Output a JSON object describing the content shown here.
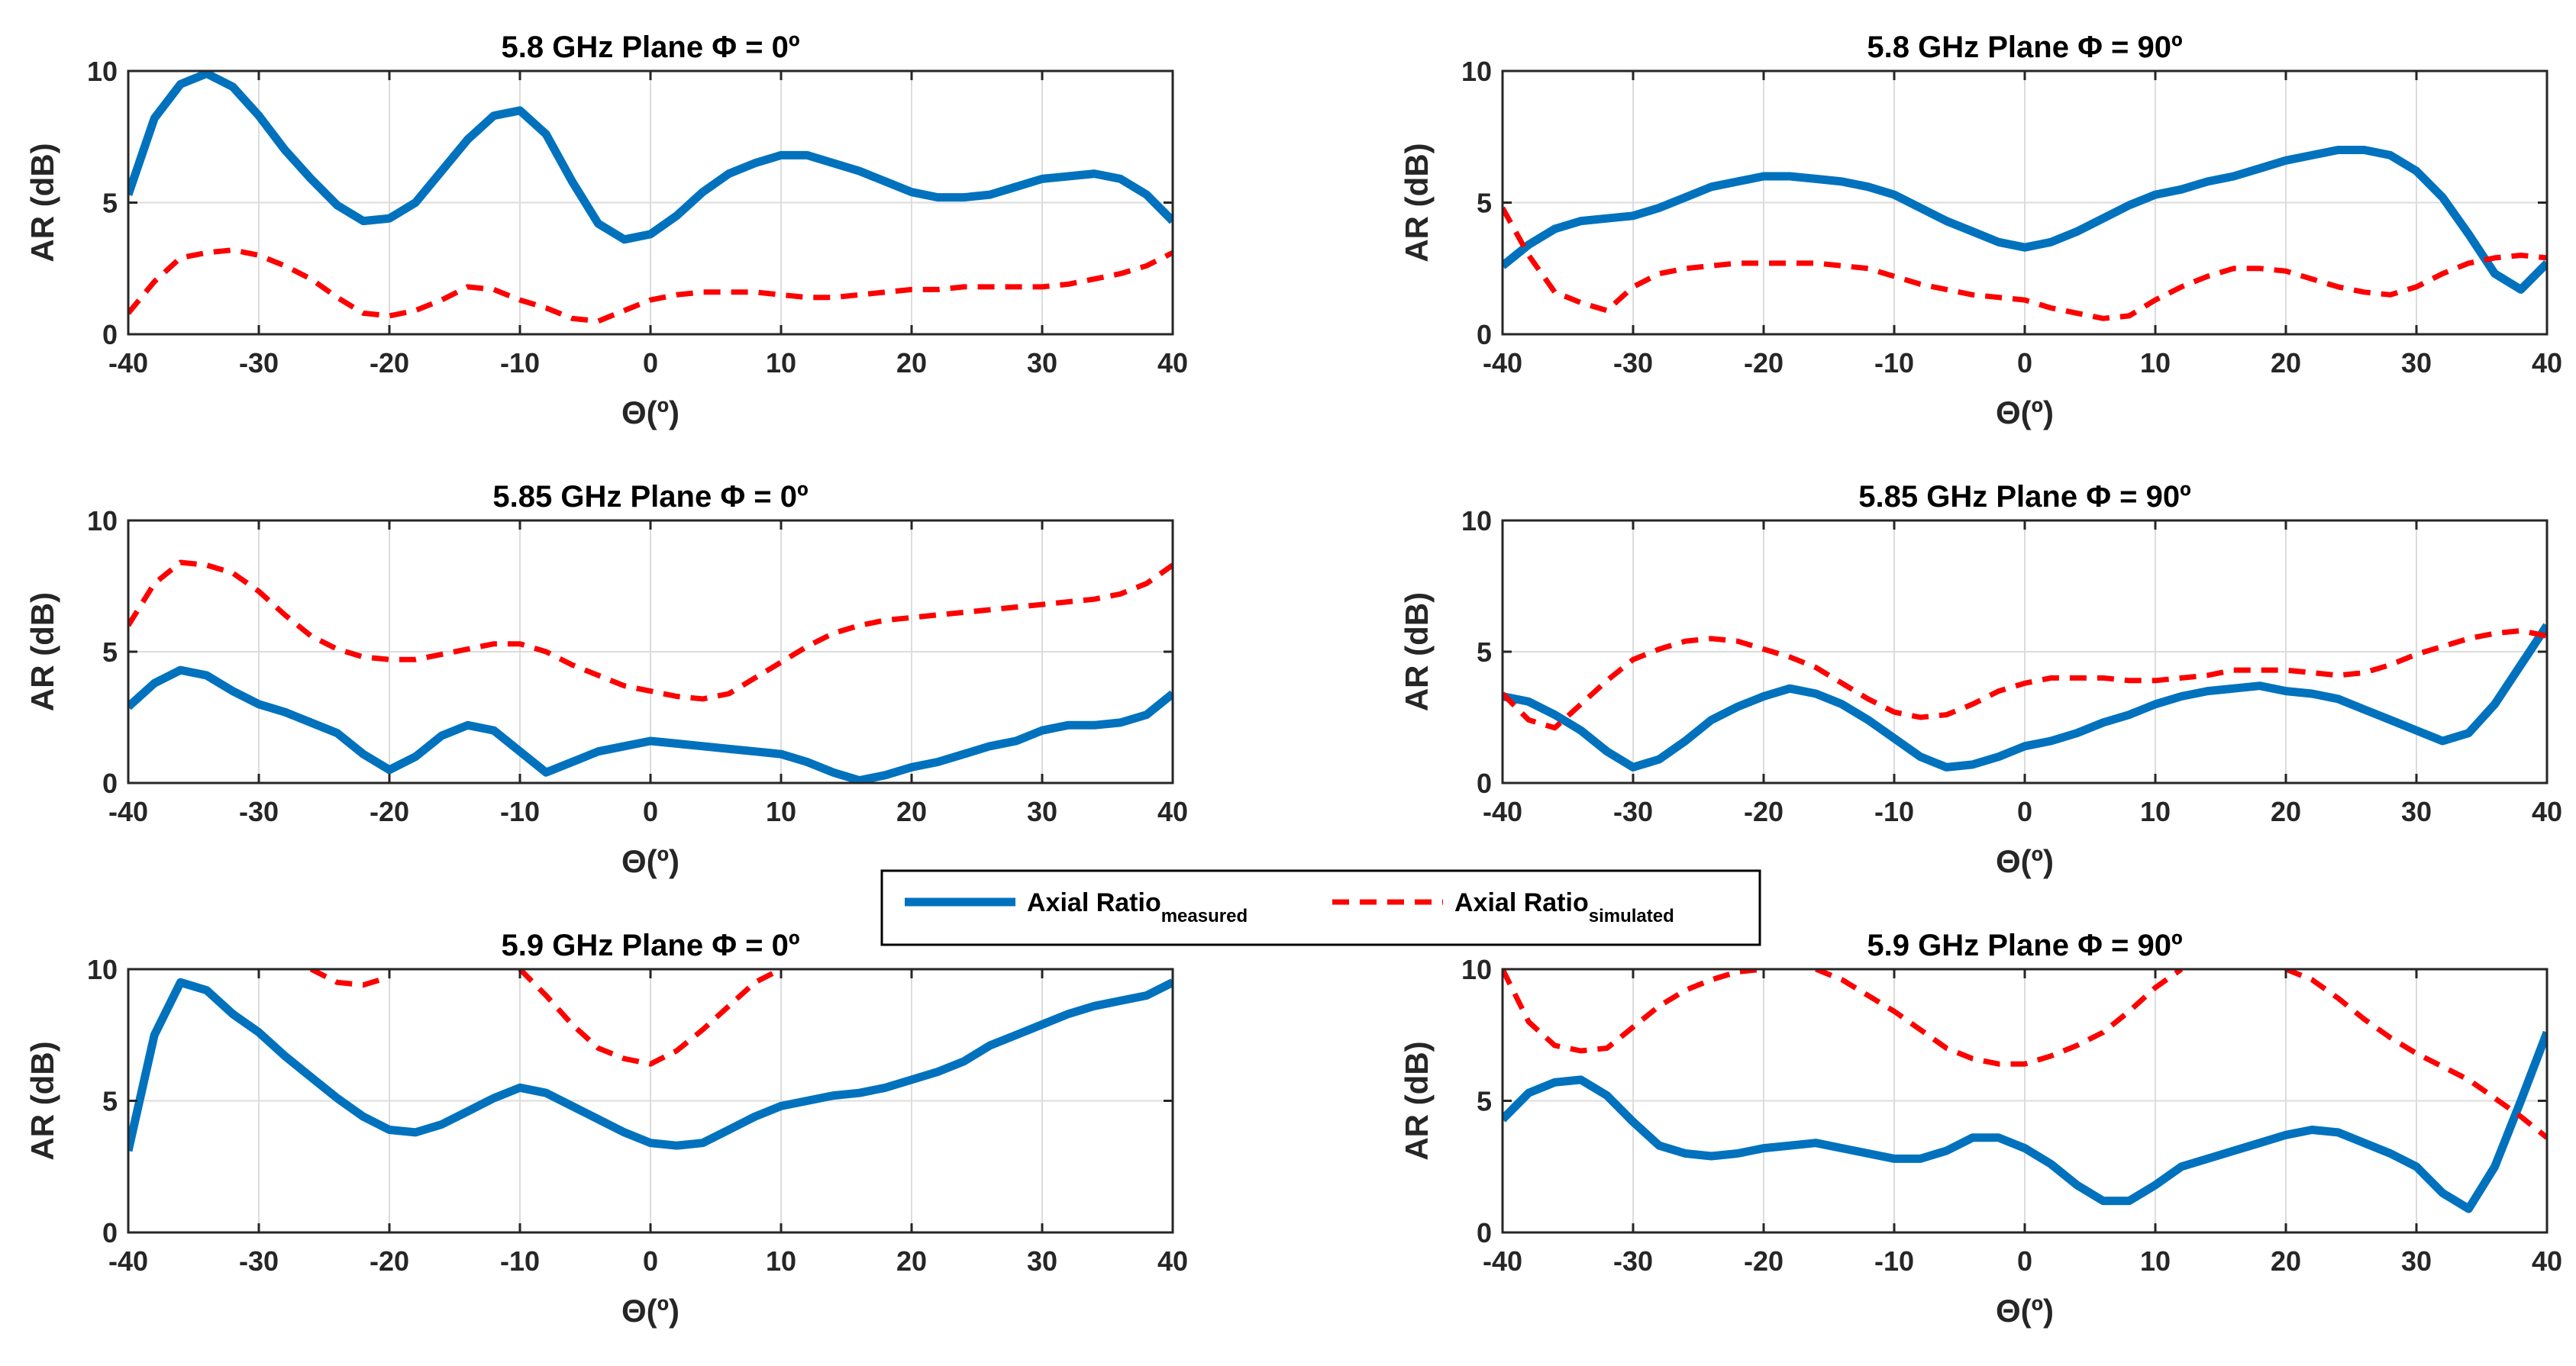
{
  "legend": {
    "measured_label": "Axial Ratio",
    "measured_sub": "measured",
    "simulated_label": "Axial Ratio",
    "simulated_sub": "simulated",
    "measured_color": "#0072BD",
    "simulated_color": "#FF0000"
  },
  "chart_data": [
    {
      "type": "line",
      "title": "5.8 GHz Plane Φ = 0º",
      "xlabel": "Θ(º)",
      "ylabel": "AR (dB)",
      "xlim": [
        -40,
        40
      ],
      "ylim": [
        0,
        10
      ],
      "xticks": [
        -40,
        -30,
        -20,
        -10,
        0,
        10,
        20,
        30,
        40
      ],
      "yticks": [
        0,
        5,
        10
      ],
      "grid": true,
      "x": [
        -40,
        -38,
        -36,
        -34,
        -32,
        -30,
        -28,
        -26,
        -24,
        -22,
        -20,
        -18,
        -16,
        -14,
        -12,
        -10,
        -8,
        -6,
        -4,
        -2,
        0,
        2,
        4,
        6,
        8,
        10,
        12,
        14,
        16,
        18,
        20,
        22,
        24,
        26,
        28,
        30,
        32,
        34,
        36,
        38,
        40
      ],
      "series": [
        {
          "name": "Axial Ratio measured",
          "values": [
            5.3,
            8.2,
            9.5,
            9.9,
            9.4,
            8.3,
            7.0,
            5.9,
            4.9,
            4.3,
            4.4,
            5.0,
            6.2,
            7.4,
            8.3,
            8.5,
            7.6,
            5.8,
            4.2,
            3.6,
            3.8,
            4.5,
            5.4,
            6.1,
            6.5,
            6.8,
            6.8,
            6.5,
            6.2,
            5.8,
            5.4,
            5.2,
            5.2,
            5.3,
            5.6,
            5.9,
            6.0,
            6.1,
            5.9,
            5.3,
            4.3
          ]
        },
        {
          "name": "Axial Ratio simulated",
          "values": [
            0.8,
            2.0,
            2.9,
            3.1,
            3.2,
            3.0,
            2.6,
            2.1,
            1.4,
            0.8,
            0.7,
            0.9,
            1.3,
            1.8,
            1.7,
            1.3,
            1.0,
            0.6,
            0.5,
            0.9,
            1.3,
            1.5,
            1.6,
            1.6,
            1.6,
            1.5,
            1.4,
            1.4,
            1.5,
            1.6,
            1.7,
            1.7,
            1.8,
            1.8,
            1.8,
            1.8,
            1.9,
            2.1,
            2.3,
            2.6,
            3.1
          ]
        }
      ]
    },
    {
      "type": "line",
      "title": "5.8 GHz Plane Φ = 90º",
      "xlabel": "Θ(º)",
      "ylabel": "AR (dB)",
      "xlim": [
        -40,
        40
      ],
      "ylim": [
        0,
        10
      ],
      "xticks": [
        -40,
        -30,
        -20,
        -10,
        0,
        10,
        20,
        30,
        40
      ],
      "yticks": [
        0,
        5,
        10
      ],
      "grid": true,
      "x": [
        -40,
        -38,
        -36,
        -34,
        -32,
        -30,
        -28,
        -26,
        -24,
        -22,
        -20,
        -18,
        -16,
        -14,
        -12,
        -10,
        -8,
        -6,
        -4,
        -2,
        0,
        2,
        4,
        6,
        8,
        10,
        12,
        14,
        16,
        18,
        20,
        22,
        24,
        26,
        28,
        30,
        32,
        34,
        36,
        38,
        40
      ],
      "series": [
        {
          "name": "Axial Ratio measured",
          "values": [
            2.6,
            3.4,
            4.0,
            4.3,
            4.4,
            4.5,
            4.8,
            5.2,
            5.6,
            5.8,
            6.0,
            6.0,
            5.9,
            5.8,
            5.6,
            5.3,
            4.8,
            4.3,
            3.9,
            3.5,
            3.3,
            3.5,
            3.9,
            4.4,
            4.9,
            5.3,
            5.5,
            5.8,
            6.0,
            6.3,
            6.6,
            6.8,
            7.0,
            7.0,
            6.8,
            6.2,
            5.2,
            3.8,
            2.3,
            1.7,
            2.7
          ]
        },
        {
          "name": "Axial Ratio simulated",
          "values": [
            4.8,
            3.0,
            1.6,
            1.2,
            0.9,
            1.8,
            2.3,
            2.5,
            2.6,
            2.7,
            2.7,
            2.7,
            2.7,
            2.6,
            2.5,
            2.2,
            1.9,
            1.7,
            1.5,
            1.4,
            1.3,
            1.0,
            0.8,
            0.6,
            0.7,
            1.3,
            1.8,
            2.2,
            2.5,
            2.5,
            2.4,
            2.1,
            1.8,
            1.6,
            1.5,
            1.8,
            2.3,
            2.7,
            2.9,
            3.0,
            2.9
          ]
        }
      ]
    },
    {
      "type": "line",
      "title": "5.85 GHz Plane Φ = 0º",
      "xlabel": "Θ(º)",
      "ylabel": "AR (dB)",
      "xlim": [
        -40,
        40
      ],
      "ylim": [
        0,
        10
      ],
      "xticks": [
        -40,
        -30,
        -20,
        -10,
        0,
        10,
        20,
        30,
        40
      ],
      "yticks": [
        0,
        5,
        10
      ],
      "grid": true,
      "x": [
        -40,
        -38,
        -36,
        -34,
        -32,
        -30,
        -28,
        -26,
        -24,
        -22,
        -20,
        -18,
        -16,
        -14,
        -12,
        -10,
        -8,
        -6,
        -4,
        -2,
        0,
        2,
        4,
        6,
        8,
        10,
        12,
        14,
        16,
        18,
        20,
        22,
        24,
        26,
        28,
        30,
        32,
        34,
        36,
        38,
        40
      ],
      "series": [
        {
          "name": "Axial Ratio measured",
          "values": [
            2.9,
            3.8,
            4.3,
            4.1,
            3.5,
            3.0,
            2.7,
            2.3,
            1.9,
            1.1,
            0.5,
            1.0,
            1.8,
            2.2,
            2.0,
            1.2,
            0.4,
            0.8,
            1.2,
            1.4,
            1.6,
            1.5,
            1.4,
            1.3,
            1.2,
            1.1,
            0.8,
            0.4,
            0.1,
            0.3,
            0.6,
            0.8,
            1.1,
            1.4,
            1.6,
            2.0,
            2.2,
            2.2,
            2.3,
            2.6,
            3.4
          ]
        },
        {
          "name": "Axial Ratio simulated",
          "values": [
            6.0,
            7.6,
            8.4,
            8.3,
            8.0,
            7.3,
            6.4,
            5.6,
            5.1,
            4.8,
            4.7,
            4.7,
            4.9,
            5.1,
            5.3,
            5.3,
            5.0,
            4.5,
            4.1,
            3.7,
            3.5,
            3.3,
            3.2,
            3.4,
            4.0,
            4.6,
            5.2,
            5.7,
            6.0,
            6.2,
            6.3,
            6.4,
            6.5,
            6.6,
            6.7,
            6.8,
            6.9,
            7.0,
            7.2,
            7.6,
            8.3
          ]
        }
      ]
    },
    {
      "type": "line",
      "title": "5.85 GHz Plane Φ = 90º",
      "xlabel": "Θ(º)",
      "ylabel": "AR (dB)",
      "xlim": [
        -40,
        40
      ],
      "ylim": [
        0,
        10
      ],
      "xticks": [
        -40,
        -30,
        -20,
        -10,
        0,
        10,
        20,
        30,
        40
      ],
      "yticks": [
        0,
        5,
        10
      ],
      "grid": true,
      "x": [
        -40,
        -38,
        -36,
        -34,
        -32,
        -30,
        -28,
        -26,
        -24,
        -22,
        -20,
        -18,
        -16,
        -14,
        -12,
        -10,
        -8,
        -6,
        -4,
        -2,
        0,
        2,
        4,
        6,
        8,
        10,
        12,
        14,
        16,
        18,
        20,
        22,
        24,
        26,
        28,
        30,
        32,
        34,
        36,
        38,
        40
      ],
      "series": [
        {
          "name": "Axial Ratio measured",
          "values": [
            3.3,
            3.1,
            2.6,
            2.0,
            1.2,
            0.6,
            0.9,
            1.6,
            2.4,
            2.9,
            3.3,
            3.6,
            3.4,
            3.0,
            2.4,
            1.7,
            1.0,
            0.6,
            0.7,
            1.0,
            1.4,
            1.6,
            1.9,
            2.3,
            2.6,
            3.0,
            3.3,
            3.5,
            3.6,
            3.7,
            3.5,
            3.4,
            3.2,
            2.8,
            2.4,
            2.0,
            1.6,
            1.9,
            3.0,
            4.5,
            6.0
          ]
        },
        {
          "name": "Axial Ratio simulated",
          "values": [
            3.4,
            2.4,
            2.1,
            3.0,
            3.9,
            4.7,
            5.1,
            5.4,
            5.5,
            5.4,
            5.1,
            4.8,
            4.4,
            3.8,
            3.2,
            2.7,
            2.5,
            2.6,
            3.0,
            3.5,
            3.8,
            4.0,
            4.0,
            4.0,
            3.9,
            3.9,
            4.0,
            4.1,
            4.3,
            4.3,
            4.3,
            4.2,
            4.1,
            4.2,
            4.5,
            4.9,
            5.2,
            5.5,
            5.7,
            5.8,
            5.6
          ]
        }
      ]
    },
    {
      "type": "line",
      "title": "5.9 GHz Plane Φ = 0º",
      "xlabel": "Θ(º)",
      "ylabel": "AR (dB)",
      "xlim": [
        -40,
        40
      ],
      "ylim": [
        0,
        10
      ],
      "xticks": [
        -40,
        -30,
        -20,
        -10,
        0,
        10,
        20,
        30,
        40
      ],
      "yticks": [
        0,
        5,
        10
      ],
      "grid": true,
      "x": [
        -40,
        -38,
        -36,
        -34,
        -32,
        -30,
        -28,
        -26,
        -24,
        -22,
        -20,
        -18,
        -16,
        -14,
        -12,
        -10,
        -8,
        -6,
        -4,
        -2,
        0,
        2,
        4,
        6,
        8,
        10,
        12,
        14,
        16,
        18,
        20,
        22,
        24,
        26,
        28,
        30,
        32,
        34,
        36,
        38,
        40
      ],
      "series": [
        {
          "name": "Axial Ratio measured",
          "values": [
            3.1,
            7.5,
            9.5,
            9.2,
            8.3,
            7.6,
            6.7,
            5.9,
            5.1,
            4.4,
            3.9,
            3.8,
            4.1,
            4.6,
            5.1,
            5.5,
            5.3,
            4.8,
            4.3,
            3.8,
            3.4,
            3.3,
            3.4,
            3.9,
            4.4,
            4.8,
            5.0,
            5.2,
            5.3,
            5.5,
            5.8,
            6.1,
            6.5,
            7.1,
            7.5,
            7.9,
            8.3,
            8.6,
            8.8,
            9.0,
            9.5
          ]
        },
        {
          "name": "Axial Ratio simulated",
          "values": [
            null,
            null,
            null,
            null,
            null,
            null,
            null,
            10.0,
            9.5,
            9.4,
            9.7,
            null,
            null,
            null,
            null,
            10.0,
            9.0,
            7.9,
            7.0,
            6.6,
            6.4,
            6.9,
            7.7,
            8.6,
            9.5,
            10.0,
            null,
            null,
            null,
            null,
            null,
            null,
            null,
            null,
            null,
            null,
            null,
            null,
            null,
            null,
            null
          ]
        }
      ]
    },
    {
      "type": "line",
      "title": "5.9 GHz Plane Φ = 90º",
      "xlabel": "Θ(º)",
      "ylabel": "AR (dB)",
      "xlim": [
        -40,
        40
      ],
      "ylim": [
        0,
        10
      ],
      "xticks": [
        -40,
        -30,
        -20,
        -10,
        0,
        10,
        20,
        30,
        40
      ],
      "yticks": [
        0,
        5,
        10
      ],
      "grid": true,
      "x": [
        -40,
        -38,
        -36,
        -34,
        -32,
        -30,
        -28,
        -26,
        -24,
        -22,
        -20,
        -18,
        -16,
        -14,
        -12,
        -10,
        -8,
        -6,
        -4,
        -2,
        0,
        2,
        4,
        6,
        8,
        10,
        12,
        14,
        16,
        18,
        20,
        22,
        24,
        26,
        28,
        30,
        32,
        34,
        36,
        38,
        40
      ],
      "series": [
        {
          "name": "Axial Ratio measured",
          "values": [
            4.3,
            5.3,
            5.7,
            5.8,
            5.2,
            4.2,
            3.3,
            3.0,
            2.9,
            3.0,
            3.2,
            3.3,
            3.4,
            3.2,
            3.0,
            2.8,
            2.8,
            3.1,
            3.6,
            3.6,
            3.2,
            2.6,
            1.8,
            1.2,
            1.2,
            1.8,
            2.5,
            2.8,
            3.1,
            3.4,
            3.7,
            3.9,
            3.8,
            3.4,
            3.0,
            2.5,
            1.5,
            0.9,
            2.5,
            5.0,
            7.6
          ]
        },
        {
          "name": "Axial Ratio simulated",
          "values": [
            10.0,
            8.0,
            7.1,
            6.9,
            7.0,
            7.8,
            8.6,
            9.2,
            9.6,
            9.9,
            10.0,
            null,
            10.0,
            9.6,
            9.0,
            8.4,
            7.7,
            7.0,
            6.6,
            6.4,
            6.4,
            6.7,
            7.1,
            7.6,
            8.4,
            9.3,
            10.0,
            null,
            null,
            null,
            10.0,
            9.6,
            8.9,
            8.1,
            7.4,
            6.8,
            6.3,
            5.8,
            5.1,
            4.4,
            3.6
          ]
        }
      ]
    }
  ]
}
